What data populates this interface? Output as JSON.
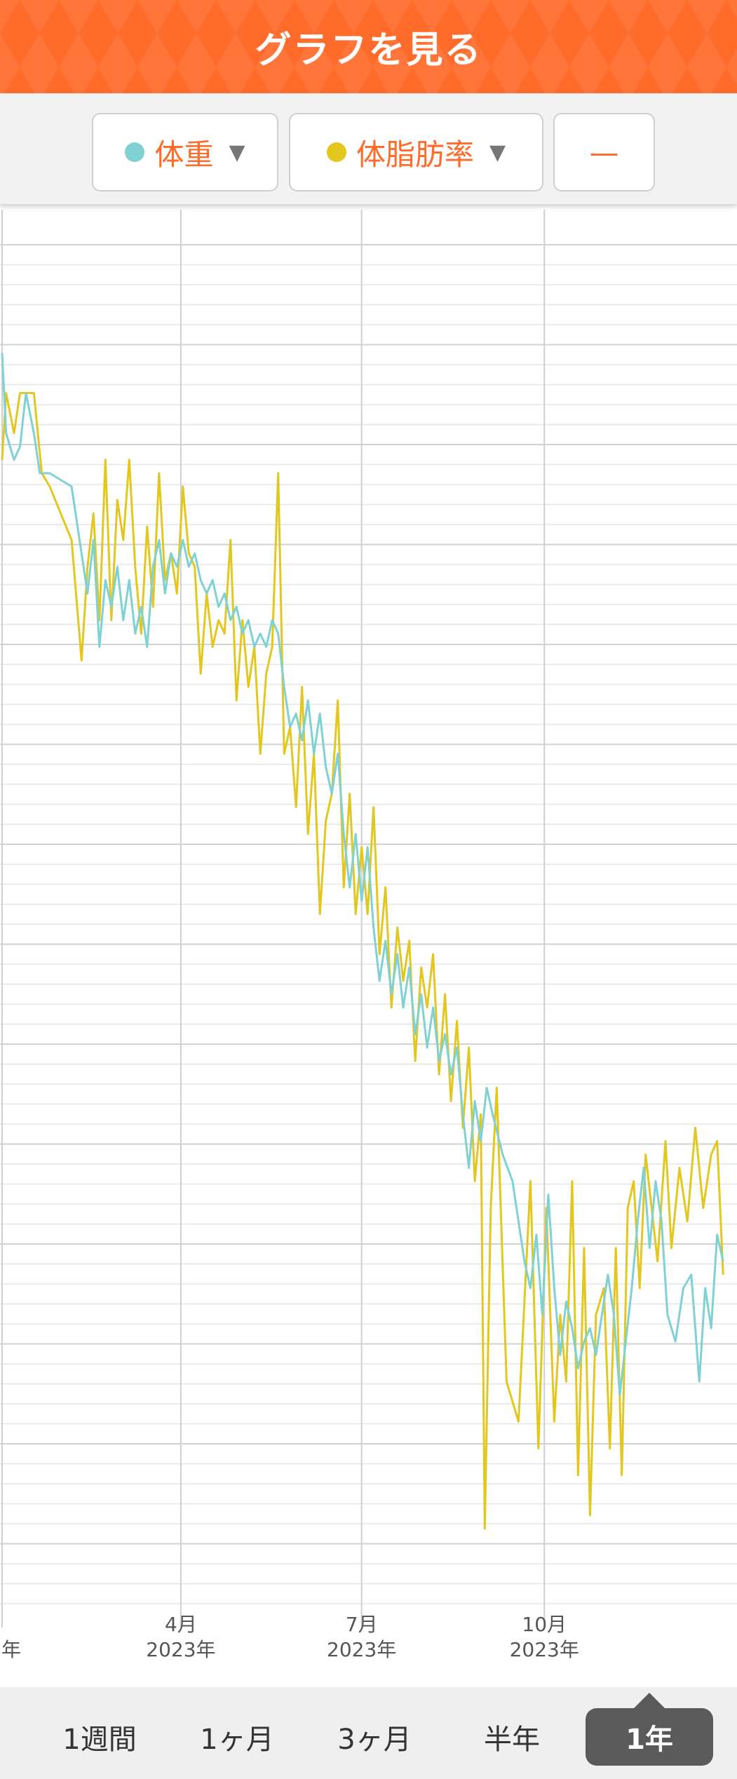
{
  "header": {
    "title": "グラフを見る"
  },
  "selectors": [
    {
      "label": "体重",
      "dot_color": "#7fd1d3",
      "caret": "▼"
    },
    {
      "label": "体脂肪率",
      "dot_color": "#e3c71f",
      "caret": "▼"
    },
    {
      "label": "—"
    }
  ],
  "periods": [
    {
      "label": "1週間"
    },
    {
      "label": "1ヶ月"
    },
    {
      "label": "3ヶ月"
    },
    {
      "label": "半年"
    },
    {
      "label": "1年",
      "active": true
    }
  ],
  "colors": {
    "accent": "#ff6b2b",
    "weight": "#7fd1d3",
    "fat": "#e3c71f",
    "grid": "#e6e6e6",
    "grid_major": "#d2d2d2"
  },
  "chart_data": {
    "type": "line",
    "xlabel": "",
    "ylabel": "",
    "grid": true,
    "xlim": [
      "2023-01-01",
      "2023-12-31"
    ],
    "ylim": [
      0,
      100
    ],
    "x_ticks": [
      {
        "date": "2023-01-01",
        "lines": [
          "",
          "年"
        ]
      },
      {
        "date": "2023-04-01",
        "lines": [
          "4月",
          "2023年"
        ]
      },
      {
        "date": "2023-07-01",
        "lines": [
          "7月",
          "2023年"
        ]
      },
      {
        "date": "2023-10-01",
        "lines": [
          "10月",
          "2023年"
        ]
      }
    ],
    "series": [
      {
        "name": "体重",
        "color": "#7fd1d3",
        "points": [
          [
            "2023-01-01",
            92
          ],
          [
            "2023-01-03",
            86
          ],
          [
            "2023-01-07",
            84
          ],
          [
            "2023-01-10",
            85
          ],
          [
            "2023-01-13",
            89
          ],
          [
            "2023-01-17",
            86
          ],
          [
            "2023-01-20",
            83
          ],
          [
            "2023-01-25",
            83
          ],
          [
            "2023-02-05",
            82
          ],
          [
            "2023-02-10",
            77
          ],
          [
            "2023-02-13",
            74
          ],
          [
            "2023-02-16",
            78
          ],
          [
            "2023-02-19",
            70
          ],
          [
            "2023-02-22",
            75
          ],
          [
            "2023-02-25",
            73
          ],
          [
            "2023-02-28",
            76
          ],
          [
            "2023-03-03",
            72
          ],
          [
            "2023-03-06",
            75
          ],
          [
            "2023-03-09",
            71
          ],
          [
            "2023-03-12",
            73
          ],
          [
            "2023-03-15",
            70
          ],
          [
            "2023-03-18",
            76
          ],
          [
            "2023-03-21",
            78
          ],
          [
            "2023-03-24",
            74
          ],
          [
            "2023-03-27",
            77
          ],
          [
            "2023-03-30",
            76
          ],
          [
            "2023-04-02",
            78
          ],
          [
            "2023-04-05",
            76
          ],
          [
            "2023-04-08",
            77
          ],
          [
            "2023-04-11",
            75
          ],
          [
            "2023-04-14",
            74
          ],
          [
            "2023-04-17",
            75
          ],
          [
            "2023-04-20",
            73
          ],
          [
            "2023-04-23",
            74
          ],
          [
            "2023-04-26",
            72
          ],
          [
            "2023-04-29",
            73
          ],
          [
            "2023-05-02",
            71
          ],
          [
            "2023-05-05",
            72
          ],
          [
            "2023-05-08",
            70
          ],
          [
            "2023-05-11",
            71
          ],
          [
            "2023-05-14",
            70
          ],
          [
            "2023-05-17",
            72
          ],
          [
            "2023-05-20",
            71
          ],
          [
            "2023-05-23",
            67
          ],
          [
            "2023-05-26",
            64
          ],
          [
            "2023-05-29",
            65
          ],
          [
            "2023-06-01",
            63
          ],
          [
            "2023-06-04",
            66
          ],
          [
            "2023-06-07",
            62
          ],
          [
            "2023-06-10",
            65
          ],
          [
            "2023-06-13",
            61
          ],
          [
            "2023-06-16",
            59
          ],
          [
            "2023-06-19",
            62
          ],
          [
            "2023-06-22",
            56
          ],
          [
            "2023-06-25",
            52
          ],
          [
            "2023-06-28",
            56
          ],
          [
            "2023-07-01",
            51
          ],
          [
            "2023-07-04",
            55
          ],
          [
            "2023-07-07",
            49
          ],
          [
            "2023-07-10",
            45
          ],
          [
            "2023-07-13",
            48
          ],
          [
            "2023-07-16",
            44
          ],
          [
            "2023-07-19",
            47
          ],
          [
            "2023-07-22",
            43
          ],
          [
            "2023-07-25",
            46
          ],
          [
            "2023-07-28",
            41
          ],
          [
            "2023-07-31",
            44
          ],
          [
            "2023-08-03",
            40
          ],
          [
            "2023-08-06",
            43
          ],
          [
            "2023-08-09",
            39
          ],
          [
            "2023-08-12",
            41
          ],
          [
            "2023-08-15",
            38
          ],
          [
            "2023-08-18",
            40
          ],
          [
            "2023-08-21",
            35
          ],
          [
            "2023-08-24",
            31
          ],
          [
            "2023-08-27",
            36
          ],
          [
            "2023-08-30",
            33
          ],
          [
            "2023-09-02",
            37
          ],
          [
            "2023-09-05",
            35
          ],
          [
            "2023-09-10",
            32
          ],
          [
            "2023-09-15",
            30
          ],
          [
            "2023-09-18",
            27
          ],
          [
            "2023-09-21",
            24
          ],
          [
            "2023-09-24",
            22
          ],
          [
            "2023-09-27",
            26
          ],
          [
            "2023-09-30",
            20
          ],
          [
            "2023-10-03",
            29
          ],
          [
            "2023-10-06",
            22
          ],
          [
            "2023-10-09",
            17
          ],
          [
            "2023-10-12",
            21
          ],
          [
            "2023-10-15",
            19
          ],
          [
            "2023-10-18",
            16
          ],
          [
            "2023-10-21",
            18
          ],
          [
            "2023-10-24",
            19
          ],
          [
            "2023-10-27",
            17
          ],
          [
            "2023-10-30",
            20
          ],
          [
            "2023-11-02",
            23
          ],
          [
            "2023-11-05",
            20
          ],
          [
            "2023-11-08",
            14
          ],
          [
            "2023-11-11",
            18
          ],
          [
            "2023-11-14",
            22
          ],
          [
            "2023-11-17",
            27
          ],
          [
            "2023-11-20",
            31
          ],
          [
            "2023-11-23",
            25
          ],
          [
            "2023-11-26",
            30
          ],
          [
            "2023-11-29",
            27
          ],
          [
            "2023-12-02",
            20
          ],
          [
            "2023-12-06",
            18
          ],
          [
            "2023-12-10",
            22
          ],
          [
            "2023-12-14",
            23
          ],
          [
            "2023-12-18",
            15
          ],
          [
            "2023-12-21",
            22
          ],
          [
            "2023-12-24",
            19
          ],
          [
            "2023-12-27",
            26
          ],
          [
            "2023-12-30",
            24
          ]
        ]
      },
      {
        "name": "体脂肪率",
        "color": "#e3c71f",
        "points": [
          [
            "2023-01-01",
            84
          ],
          [
            "2023-01-03",
            89
          ],
          [
            "2023-01-07",
            86
          ],
          [
            "2023-01-10",
            89
          ],
          [
            "2023-01-14",
            89
          ],
          [
            "2023-01-17",
            89
          ],
          [
            "2023-01-21",
            83
          ],
          [
            "2023-01-25",
            82
          ],
          [
            "2023-02-05",
            78
          ],
          [
            "2023-02-10",
            69
          ],
          [
            "2023-02-13",
            76
          ],
          [
            "2023-02-16",
            80
          ],
          [
            "2023-02-19",
            72
          ],
          [
            "2023-02-22",
            84
          ],
          [
            "2023-02-25",
            72
          ],
          [
            "2023-02-28",
            81
          ],
          [
            "2023-03-03",
            78
          ],
          [
            "2023-03-06",
            84
          ],
          [
            "2023-03-09",
            76
          ],
          [
            "2023-03-12",
            71
          ],
          [
            "2023-03-15",
            79
          ],
          [
            "2023-03-18",
            73
          ],
          [
            "2023-03-21",
            83
          ],
          [
            "2023-03-24",
            75
          ],
          [
            "2023-03-27",
            77
          ],
          [
            "2023-03-30",
            74
          ],
          [
            "2023-04-02",
            82
          ],
          [
            "2023-04-05",
            77
          ],
          [
            "2023-04-08",
            76
          ],
          [
            "2023-04-11",
            68
          ],
          [
            "2023-04-14",
            74
          ],
          [
            "2023-04-17",
            70
          ],
          [
            "2023-04-20",
            72
          ],
          [
            "2023-04-23",
            71
          ],
          [
            "2023-04-26",
            78
          ],
          [
            "2023-04-29",
            66
          ],
          [
            "2023-05-02",
            72
          ],
          [
            "2023-05-05",
            67
          ],
          [
            "2023-05-08",
            70
          ],
          [
            "2023-05-11",
            62
          ],
          [
            "2023-05-14",
            68
          ],
          [
            "2023-05-17",
            70
          ],
          [
            "2023-05-20",
            83
          ],
          [
            "2023-05-23",
            62
          ],
          [
            "2023-05-26",
            64
          ],
          [
            "2023-05-29",
            58
          ],
          [
            "2023-06-01",
            67
          ],
          [
            "2023-06-04",
            56
          ],
          [
            "2023-06-07",
            62
          ],
          [
            "2023-06-10",
            50
          ],
          [
            "2023-06-13",
            57
          ],
          [
            "2023-06-16",
            59
          ],
          [
            "2023-06-19",
            66
          ],
          [
            "2023-06-22",
            52
          ],
          [
            "2023-06-25",
            59
          ],
          [
            "2023-06-28",
            50
          ],
          [
            "2023-07-01",
            55
          ],
          [
            "2023-07-04",
            50
          ],
          [
            "2023-07-07",
            58
          ],
          [
            "2023-07-10",
            47
          ],
          [
            "2023-07-13",
            52
          ],
          [
            "2023-07-16",
            43
          ],
          [
            "2023-07-19",
            49
          ],
          [
            "2023-07-22",
            45
          ],
          [
            "2023-07-25",
            48
          ],
          [
            "2023-07-28",
            39
          ],
          [
            "2023-07-31",
            46
          ],
          [
            "2023-08-03",
            43
          ],
          [
            "2023-08-06",
            47
          ],
          [
            "2023-08-09",
            38
          ],
          [
            "2023-08-12",
            44
          ],
          [
            "2023-08-15",
            36
          ],
          [
            "2023-08-18",
            42
          ],
          [
            "2023-08-21",
            34
          ],
          [
            "2023-08-24",
            40
          ],
          [
            "2023-08-27",
            30
          ],
          [
            "2023-08-30",
            35
          ],
          [
            "2023-09-01",
            4
          ],
          [
            "2023-09-04",
            28
          ],
          [
            "2023-09-07",
            37
          ],
          [
            "2023-09-12",
            15
          ],
          [
            "2023-09-18",
            12
          ],
          [
            "2023-09-24",
            30
          ],
          [
            "2023-09-28",
            10
          ],
          [
            "2023-10-02",
            28
          ],
          [
            "2023-10-06",
            12
          ],
          [
            "2023-10-09",
            20
          ],
          [
            "2023-10-12",
            15
          ],
          [
            "2023-10-15",
            30
          ],
          [
            "2023-10-18",
            8
          ],
          [
            "2023-10-21",
            25
          ],
          [
            "2023-10-24",
            5
          ],
          [
            "2023-10-27",
            20
          ],
          [
            "2023-10-31",
            22
          ],
          [
            "2023-11-03",
            10
          ],
          [
            "2023-11-06",
            25
          ],
          [
            "2023-11-09",
            8
          ],
          [
            "2023-11-12",
            28
          ],
          [
            "2023-11-15",
            30
          ],
          [
            "2023-11-18",
            22
          ],
          [
            "2023-11-21",
            32
          ],
          [
            "2023-11-24",
            28
          ],
          [
            "2023-11-27",
            24
          ],
          [
            "2023-12-01",
            33
          ],
          [
            "2023-12-04",
            25
          ],
          [
            "2023-12-08",
            31
          ],
          [
            "2023-12-12",
            27
          ],
          [
            "2023-12-16",
            34
          ],
          [
            "2023-12-20",
            28
          ],
          [
            "2023-12-24",
            32
          ],
          [
            "2023-12-27",
            33
          ],
          [
            "2023-12-30",
            23
          ]
        ]
      }
    ]
  }
}
